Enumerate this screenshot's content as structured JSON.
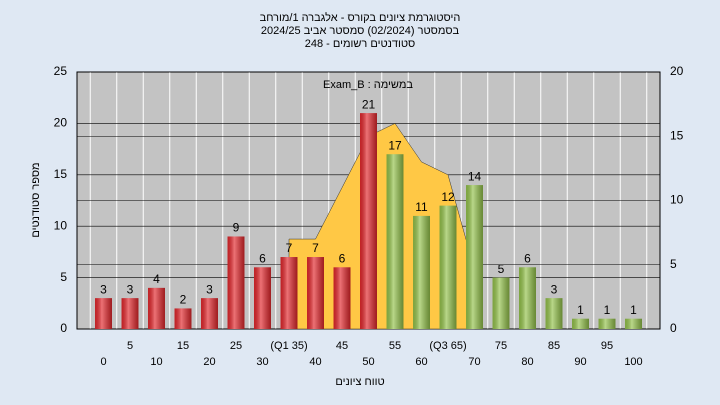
{
  "chart_data": {
    "type": "bar",
    "title": [
      "היסטוגרמת ציונים בקורס - אלגברה 1/מורחב",
      "בסמסטר  (02/2024)  סמסטר אביב 2024/25",
      "סטודנטים רשומים - 248"
    ],
    "annotation": "Exam_B : במשימה",
    "x_label": "טווח ציונים",
    "y_label": "מספר סטודנטים",
    "categories": [
      "0",
      "5",
      "10",
      "15",
      "20",
      "25",
      "30",
      "(Q1 35)",
      "40",
      "45",
      "50",
      "55",
      "60",
      "(Q3 65)",
      "70",
      "75",
      "80",
      "85",
      "90",
      "95",
      "100"
    ],
    "values": [
      3,
      3,
      4,
      2,
      3,
      9,
      6,
      7,
      7,
      6,
      21,
      17,
      11,
      12,
      14,
      5,
      6,
      3,
      1,
      1,
      1
    ],
    "colors": [
      "#e3262b",
      "#e3262b",
      "#e3262b",
      "#e3262b",
      "#e3262b",
      "#e3262b",
      "#e3262b",
      "#e3262b",
      "#e3262b",
      "#e3262b",
      "#e3262b",
      "#93c24a",
      "#93c24a",
      "#93c24a",
      "#93c24a",
      "#93c24a",
      "#93c24a",
      "#93c24a",
      "#93c24a",
      "#93c24a",
      "#93c24a"
    ],
    "area": {
      "axis": "y2",
      "color": "#ffc845",
      "values": [
        null,
        null,
        null,
        null,
        null,
        null,
        null,
        7,
        7,
        11,
        15,
        16,
        13,
        12,
        4.6,
        null,
        null,
        null,
        null,
        null,
        null
      ]
    },
    "ylim": [
      0,
      25
    ],
    "yticks": [
      0,
      5,
      10,
      15,
      20,
      25
    ],
    "y2lim": [
      0,
      20
    ],
    "y2ticks": [
      0,
      5,
      10,
      15,
      20
    ],
    "grid": true
  }
}
